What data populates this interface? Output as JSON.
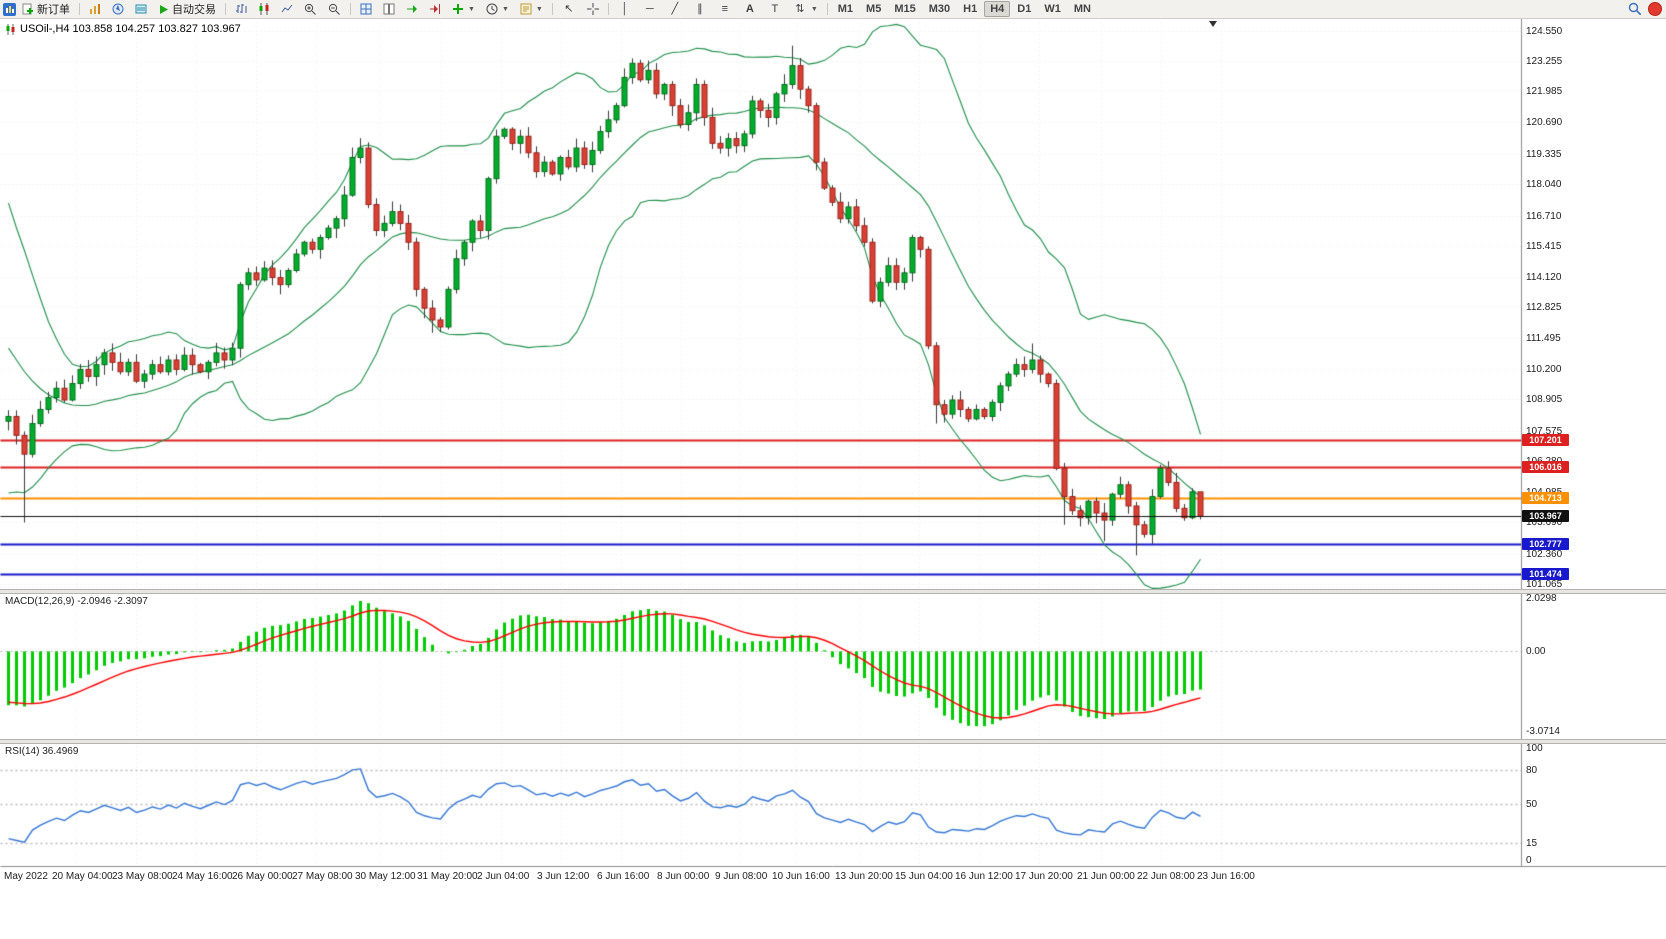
{
  "toolbar": {
    "new_order_label": "新订单",
    "autotrading_label": "自动交易",
    "timeframes": [
      "M1",
      "M5",
      "M15",
      "M30",
      "H1",
      "H4",
      "D1",
      "W1",
      "MN"
    ],
    "active_timeframe": "H4"
  },
  "chart": {
    "header": "USOil-,H4  103.858 104.257 103.827 103.967",
    "symbol": "USOil-",
    "period": "H4",
    "open": "103.858",
    "high": "104.257",
    "low": "103.827",
    "close": "103.967",
    "price_ticks": [
      "124.550",
      "123.255",
      "121.985",
      "120.690",
      "119.335",
      "118.040",
      "116.710",
      "115.415",
      "114.120",
      "112.825",
      "111.495",
      "110.200",
      "108.905",
      "107.575",
      "106.280",
      "104.985",
      "103.690",
      "102.360",
      "101.065"
    ],
    "levels": [
      {
        "label": "107.201",
        "value": 107.201,
        "color": "#dd2020",
        "width": 2,
        "current": false
      },
      {
        "label": "106.016",
        "value": 106.016,
        "color": "#dd2020",
        "width": 2,
        "current": false
      },
      {
        "label": "104.713",
        "value": 104.713,
        "color": "#ff9000",
        "width": 2,
        "current": false
      },
      {
        "label": "103.967",
        "value": 103.967,
        "color": "#111111",
        "width": 1,
        "current": true
      },
      {
        "label": "102.777",
        "value": 102.777,
        "color": "#1818cc",
        "width": 2,
        "current": false
      },
      {
        "label": "101.474",
        "value": 101.474,
        "color": "#1818cc",
        "width": 2,
        "current": false
      }
    ],
    "dates": [
      "May 2022",
      "20 May 04:00",
      "23 May 08:00",
      "24 May 16:00",
      "26 May 00:00",
      "27 May 08:00",
      "30 May 12:00",
      "31 May 20:00",
      "2 Jun 04:00",
      "3 Jun 12:00",
      "6 Jun 16:00",
      "8 Jun 00:00",
      "9 Jun 08:00",
      "10 Jun 16:00",
      "13 Jun 20:00",
      "15 Jun 04:00",
      "16 Jun 12:00",
      "17 Jun 20:00",
      "21 Jun 00:00",
      "22 Jun 08:00",
      "23 Jun 16:00"
    ]
  },
  "chart_data": {
    "type": "candlestick",
    "symbol": "USOil-",
    "period": "H4",
    "ylim": [
      101.065,
      124.55
    ],
    "warmup": [
      116.8,
      117.5,
      116.6,
      115.8,
      115.0,
      114.2,
      113.0,
      112.2,
      111.4,
      110.6,
      109.8,
      109.2,
      108.6,
      109.3,
      108.7,
      108.1,
      108.6,
      109.0,
      108.3,
      108.0
    ],
    "closes": [
      108.2,
      107.4,
      106.6,
      107.9,
      108.5,
      109.0,
      109.4,
      108.9,
      109.6,
      110.2,
      109.9,
      110.4,
      110.9,
      110.5,
      110.1,
      110.5,
      109.7,
      110.0,
      110.4,
      110.1,
      110.6,
      110.2,
      110.8,
      110.4,
      110.1,
      110.5,
      110.9,
      110.6,
      111.1,
      113.8,
      114.3,
      114.0,
      114.5,
      114.1,
      113.8,
      114.4,
      115.1,
      115.6,
      115.3,
      115.8,
      116.2,
      116.6,
      117.6,
      119.2,
      119.6,
      117.2,
      116.1,
      116.4,
      116.9,
      116.4,
      115.6,
      113.6,
      112.8,
      112.3,
      112.0,
      113.6,
      114.9,
      115.6,
      116.5,
      116.1,
      118.3,
      120.1,
      120.4,
      119.8,
      120.1,
      119.4,
      118.6,
      119.0,
      118.5,
      119.2,
      118.8,
      119.6,
      118.9,
      119.5,
      120.3,
      120.8,
      121.4,
      122.6,
      123.2,
      122.5,
      122.9,
      121.9,
      122.3,
      121.4,
      120.6,
      121.1,
      122.3,
      120.9,
      119.8,
      119.6,
      120.0,
      119.7,
      120.2,
      121.6,
      121.2,
      120.9,
      121.9,
      122.3,
      123.1,
      122.1,
      121.4,
      119.0,
      117.9,
      117.3,
      116.6,
      117.1,
      116.3,
      115.6,
      113.1,
      113.9,
      114.6,
      113.9,
      114.3,
      115.8,
      115.3,
      111.2,
      108.7,
      108.3,
      108.9,
      108.5,
      108.1,
      108.5,
      108.2,
      108.8,
      109.5,
      110.0,
      110.4,
      110.2,
      110.6,
      110.0,
      109.6,
      106.0,
      104.8,
      104.2,
      103.9,
      104.6,
      104.1,
      103.8,
      104.9,
      105.3,
      104.4,
      103.6,
      103.2,
      104.8,
      106.0,
      105.4,
      104.3,
      103.9,
      105.0,
      103.97
    ],
    "wick_overrides": {
      "2": {
        "low": 103.7
      },
      "53": {
        "low": 111.75
      },
      "98": {
        "high": 123.95
      },
      "116": {
        "low": 107.9
      },
      "128": {
        "high": 111.3
      },
      "132": {
        "low": 103.6
      },
      "137": {
        "low": 102.9
      },
      "141": {
        "low": 102.3
      },
      "144": {
        "high": 106.15
      },
      "149": {
        "high": 104.26,
        "low": 103.83
      }
    },
    "bollinger": {
      "period": 20,
      "deviation": 2
    },
    "macd": {
      "fast": 12,
      "slow": 26,
      "signal": 9,
      "label": "MACD(12,26,9) -2.0946 -2.3097",
      "current_macd": -2.0946,
      "current_signal": -2.3097,
      "axis_labels": [
        "2.0298",
        "0.00",
        "-3.0714"
      ],
      "axis_top": 2.0298,
      "axis_bottom": -3.0714
    },
    "rsi": {
      "period": 14,
      "label": "RSI(14) 36.4969",
      "current": 36.4969,
      "axis_labels": [
        "100",
        "80",
        "50",
        "15",
        "0"
      ],
      "axis_values": [
        100,
        80,
        50,
        15,
        0
      ],
      "guides": [
        80,
        50,
        15
      ]
    },
    "colors": {
      "up": "#00ad2b",
      "down": "#d94034",
      "up_border": "#00701c",
      "down_border": "#9c221a",
      "wick": "#3a3a3a",
      "band": "#1f8f4a",
      "macd_hist": "#00cc00",
      "macd_signal": "#ff0000",
      "rsi_line": "#3577d4",
      "grid": "#ededed",
      "axis_line": "#8c8c8c"
    }
  }
}
